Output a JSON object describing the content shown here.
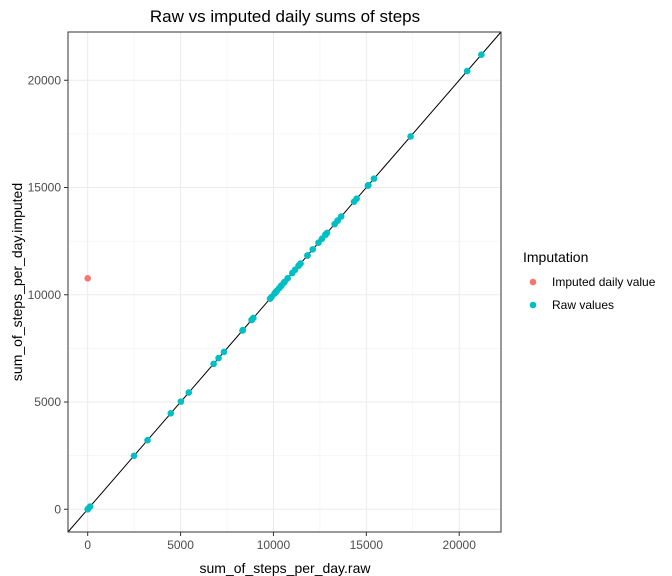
{
  "chart_data": {
    "type": "scatter",
    "title": "Raw vs imputed daily sums of steps",
    "xlabel": "sum_of_steps_per_day.raw",
    "ylabel": "sum_of_steps_per_day.imputed",
    "xlim": [
      -1060,
      22250
    ],
    "ylim": [
      -1060,
      22250
    ],
    "x_ticks": [
      0,
      5000,
      10000,
      15000,
      20000
    ],
    "y_ticks": [
      0,
      5000,
      10000,
      15000,
      20000
    ],
    "x_tick_labels": [
      "0",
      "5000",
      "10000",
      "15000",
      "20000"
    ],
    "y_tick_labels": [
      "0",
      "5000",
      "10000",
      "15000",
      "20000"
    ],
    "grid": true,
    "reference_line": {
      "slope": 1,
      "intercept": 0,
      "color": "#000000"
    },
    "legend": {
      "title": "Imputation",
      "placement": "right",
      "entries": [
        {
          "label": "Imputed daily value",
          "color": "#F8766D"
        },
        {
          "label": "Raw values",
          "color": "#00BFC4"
        }
      ]
    },
    "series": [
      {
        "name": "Imputed daily value",
        "color": "#F8766D",
        "points": [
          [
            0,
            10766
          ]
        ]
      },
      {
        "name": "Raw values",
        "color": "#00BFC4",
        "points": [
          [
            0,
            0
          ],
          [
            41,
            41
          ],
          [
            126,
            126
          ],
          [
            2492,
            2492
          ],
          [
            3219,
            3219
          ],
          [
            4472,
            4472
          ],
          [
            5018,
            5018
          ],
          [
            5441,
            5441
          ],
          [
            6778,
            6778
          ],
          [
            7047,
            7047
          ],
          [
            7336,
            7336
          ],
          [
            8334,
            8334
          ],
          [
            8355,
            8355
          ],
          [
            8821,
            8821
          ],
          [
            8841,
            8841
          ],
          [
            8918,
            8918
          ],
          [
            9819,
            9819
          ],
          [
            9900,
            9900
          ],
          [
            10056,
            10056
          ],
          [
            10119,
            10119
          ],
          [
            10139,
            10139
          ],
          [
            10183,
            10183
          ],
          [
            10304,
            10304
          ],
          [
            10395,
            10395
          ],
          [
            10439,
            10439
          ],
          [
            10571,
            10571
          ],
          [
            10600,
            10600
          ],
          [
            10765,
            10765
          ],
          [
            11015,
            11015
          ],
          [
            11162,
            11162
          ],
          [
            11352,
            11352
          ],
          [
            11458,
            11458
          ],
          [
            11829,
            11829
          ],
          [
            11834,
            11834
          ],
          [
            12116,
            12116
          ],
          [
            12426,
            12426
          ],
          [
            12608,
            12608
          ],
          [
            12787,
            12787
          ],
          [
            12811,
            12811
          ],
          [
            12883,
            12883
          ],
          [
            13294,
            13294
          ],
          [
            13452,
            13452
          ],
          [
            13460,
            13460
          ],
          [
            13646,
            13646
          ],
          [
            14339,
            14339
          ],
          [
            14478,
            14478
          ],
          [
            15084,
            15084
          ],
          [
            15098,
            15098
          ],
          [
            15110,
            15110
          ],
          [
            15414,
            15414
          ],
          [
            17382,
            17382
          ],
          [
            20427,
            20427
          ],
          [
            21194,
            21194
          ]
        ]
      }
    ]
  }
}
